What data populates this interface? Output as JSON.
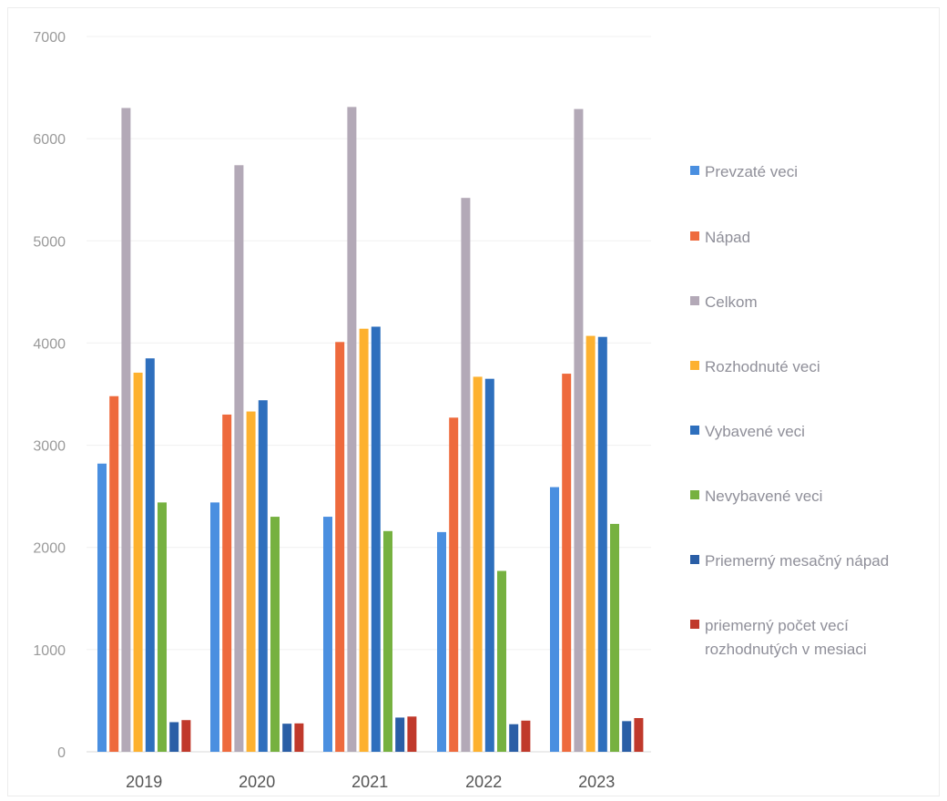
{
  "chart_data": {
    "type": "bar",
    "categories": [
      "2019",
      "2020",
      "2021",
      "2022",
      "2023"
    ],
    "ylim": [
      0,
      7000
    ],
    "yticks": [
      "0",
      "1000",
      "2000",
      "3000",
      "4000",
      "5000",
      "6000",
      "7000"
    ],
    "grid": true,
    "legend_position": "right",
    "series": [
      {
        "name": "Prevzaté veci",
        "color": "#4a8fe0",
        "values": [
          2820,
          2440,
          2300,
          2150,
          2590
        ]
      },
      {
        "name": "Nápad",
        "color": "#ee6a3d",
        "values": [
          3480,
          3300,
          4010,
          3270,
          3700
        ]
      },
      {
        "name": "Celkom",
        "color": "#b3a9b7",
        "values": [
          6300,
          5740,
          6310,
          5420,
          6290
        ]
      },
      {
        "name": "Rozhodnuté veci",
        "color": "#fdb12f",
        "values": [
          3710,
          3330,
          4140,
          3670,
          4070
        ]
      },
      {
        "name": "Vybavené veci",
        "color": "#2e6fbd",
        "values": [
          3850,
          3440,
          4160,
          3650,
          4060
        ]
      },
      {
        "name": "Nevybavené veci",
        "color": "#76b140",
        "values": [
          2440,
          2300,
          2160,
          1770,
          2230
        ]
      },
      {
        "name": "Priemerný mesačný nápad",
        "color": "#2a5ea6",
        "values": [
          290,
          275,
          335,
          270,
          300
        ]
      },
      {
        "name": "priemerný počet vecí rozhodnutých v mesiaci",
        "color": "#c0392b",
        "values": [
          310,
          278,
          345,
          305,
          330
        ]
      }
    ]
  }
}
